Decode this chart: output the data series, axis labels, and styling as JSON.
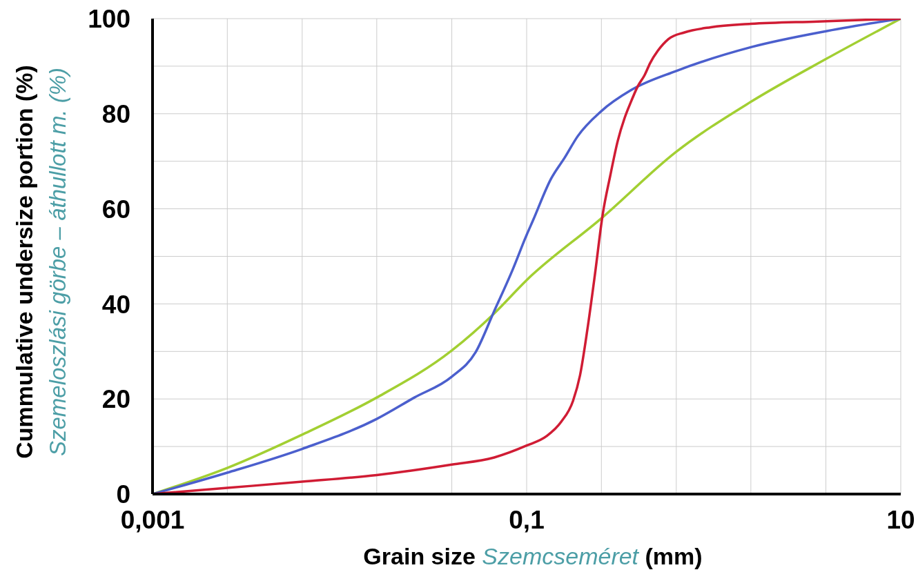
{
  "chart_data": {
    "type": "line",
    "xlabel": "Grain size Szemcseméret (mm)",
    "ylabel": "Cummulative undersize portion (%)\nSzemeloszlási görbe – áthullott m. (%)",
    "log": "x",
    "grid": true,
    "xlim": [
      0.001,
      10
    ],
    "ylim": [
      0,
      100
    ],
    "xticks": [
      {
        "value": 0.001,
        "label": "0,001"
      },
      {
        "value": 0.00251,
        "label": null
      },
      {
        "value": 0.00631,
        "label": null
      },
      {
        "value": 0.0158,
        "label": null
      },
      {
        "value": 0.0398,
        "label": null
      },
      {
        "value": 0.1,
        "label": "0,1"
      },
      {
        "value": 0.251,
        "label": null
      },
      {
        "value": 0.631,
        "label": null
      },
      {
        "value": 1.58,
        "label": null
      },
      {
        "value": 3.98,
        "label": null
      },
      {
        "value": 10,
        "label": "10"
      }
    ],
    "yticks": [
      0,
      {
        "value": 10,
        "label": null
      },
      20,
      {
        "value": 30,
        "label": null
      },
      40,
      {
        "value": 50,
        "label": null
      },
      60,
      {
        "value": 70,
        "label": null
      },
      80,
      {
        "value": 90,
        "label": null
      },
      100
    ],
    "series": [
      {
        "color": "#a2cf32",
        "x": [
          0.001,
          0.00251,
          0.00631,
          0.0158,
          0.0398,
          0.0671,
          0.1,
          0.251,
          0.631,
          1.58,
          3.98,
          10
        ],
        "values": [
          0,
          5.5,
          12.5,
          20.3,
          30.2,
          38,
          45,
          58,
          72,
          82.5,
          91.5,
          100
        ]
      },
      {
        "color": "#4b5fcd",
        "x": [
          0.001,
          0.00251,
          0.00631,
          0.0158,
          0.0251,
          0.0398,
          0.0533,
          0.0671,
          0.0838,
          0.1,
          0.108,
          0.135,
          0.16,
          0.187,
          0.25,
          0.363,
          0.631,
          1.58,
          4.03,
          10
        ],
        "values": [
          0,
          4.5,
          9.5,
          15.8,
          20.3,
          24.7,
          29.8,
          38.5,
          47,
          54.5,
          57.5,
          66.3,
          70.8,
          75.2,
          80.5,
          85,
          89,
          94,
          97.4,
          100
        ]
      },
      {
        "color": "#d01c34",
        "x": [
          0.001,
          0.00251,
          0.00631,
          0.0158,
          0.0398,
          0.0671,
          0.1,
          0.128,
          0.153,
          0.177,
          0.193,
          0.211,
          0.232,
          0.255,
          0.28,
          0.307,
          0.334,
          0.362,
          0.393,
          0.427,
          0.458,
          0.502,
          0.573,
          0.698,
          0.966,
          1.58,
          3.6,
          10
        ],
        "values": [
          0,
          1.3,
          2.6,
          4,
          6.2,
          7.7,
          10.2,
          12.2,
          15.2,
          19.6,
          25,
          34.5,
          46.3,
          58.8,
          67,
          74.3,
          79.1,
          82.6,
          85.8,
          88.1,
          90.7,
          93.2,
          95.7,
          97.1,
          98.2,
          98.9,
          99.4,
          100
        ]
      }
    ]
  }
}
